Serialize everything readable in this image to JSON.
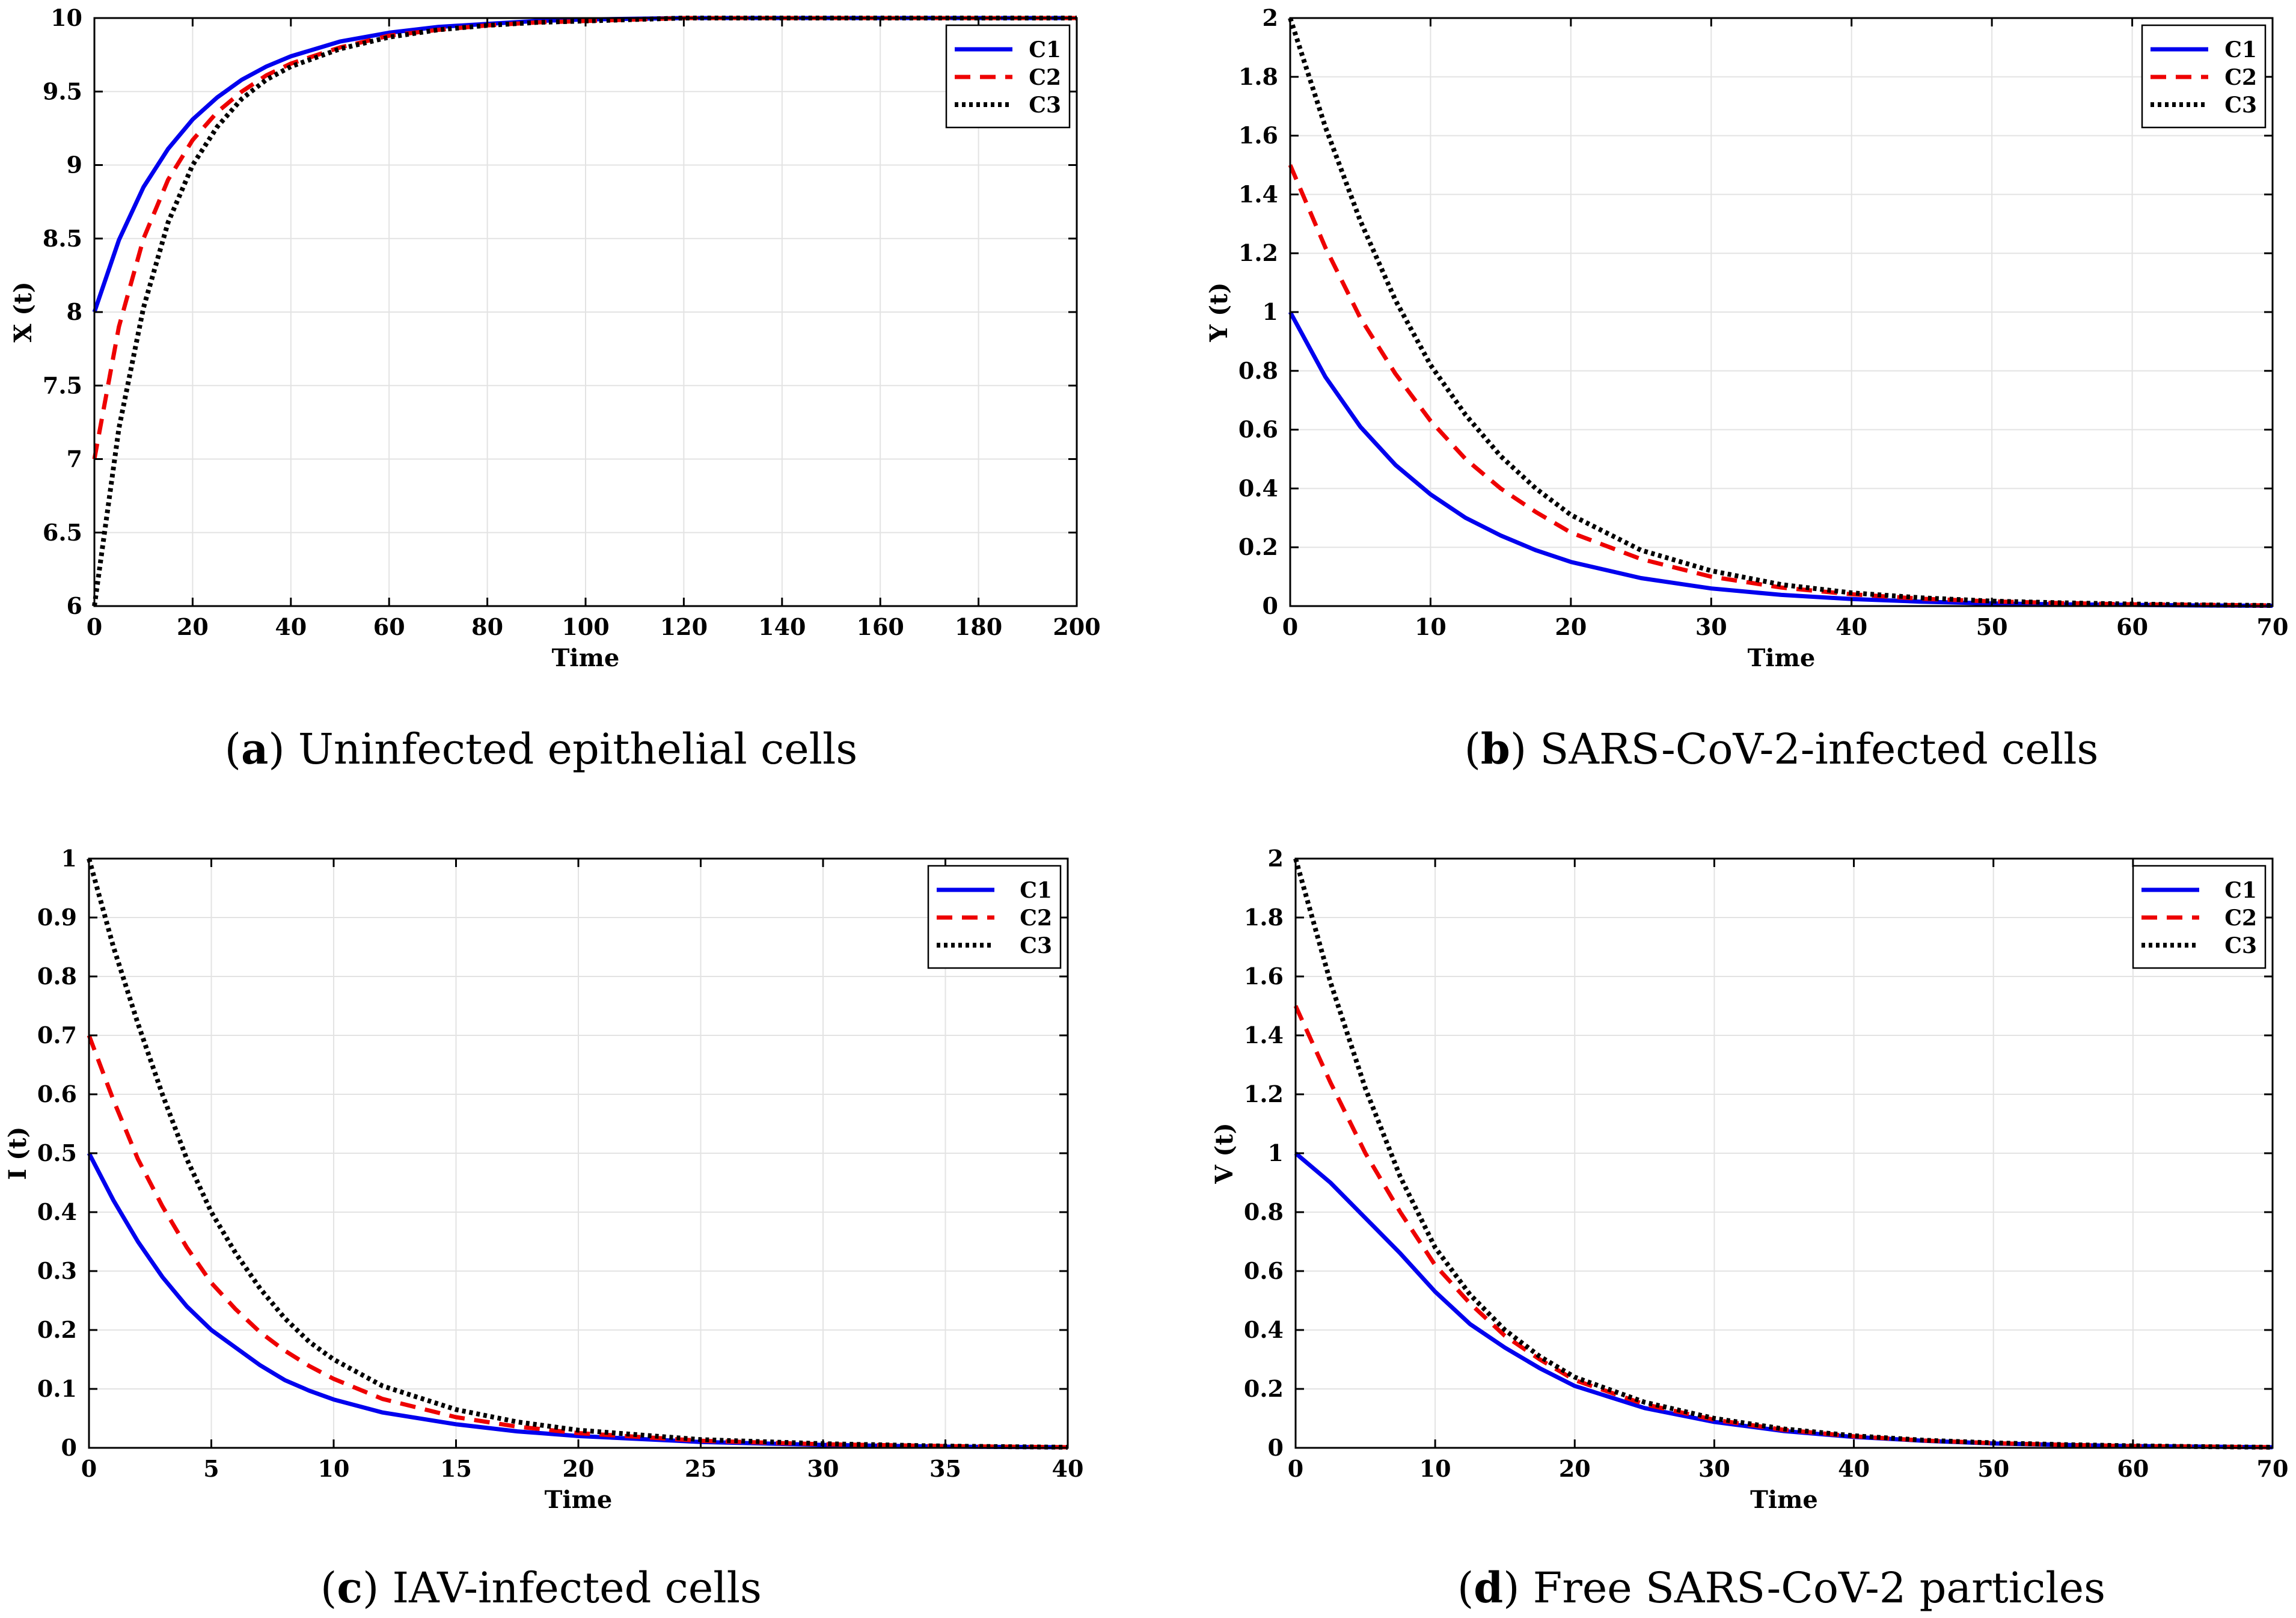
{
  "series_styles": {
    "C1": {
      "color": "#0000ee",
      "dash": "none",
      "width": 7
    },
    "C2": {
      "color": "#ee0000",
      "dash": "26,16",
      "width": 7
    },
    "C3": {
      "color": "#000000",
      "dash": "6,6",
      "width": 8
    }
  },
  "chart_data": [
    {
      "type": "line",
      "panel": "a",
      "caption_letter": "a",
      "caption_text": "Uninfected epithelial cells",
      "xlabel": "Time",
      "ylabel": "X (t)",
      "xlim": [
        0,
        200
      ],
      "ylim": [
        6,
        10
      ],
      "xticks": [
        0,
        20,
        40,
        60,
        80,
        100,
        120,
        140,
        160,
        180,
        200
      ],
      "yticks": [
        6,
        6.5,
        7,
        7.5,
        8,
        8.5,
        9,
        9.5,
        10
      ],
      "grid": true,
      "legend_position": "top-right",
      "x": [
        0,
        5,
        10,
        15,
        20,
        25,
        30,
        35,
        40,
        50,
        60,
        70,
        80,
        90,
        100,
        120,
        140,
        160,
        180,
        200
      ],
      "series": [
        {
          "name": "C1",
          "values": [
            8.0,
            8.49,
            8.85,
            9.11,
            9.31,
            9.46,
            9.58,
            9.67,
            9.74,
            9.84,
            9.9,
            9.94,
            9.96,
            9.98,
            9.99,
            10.0,
            10.0,
            10.0,
            10.0,
            10.0
          ]
        },
        {
          "name": "C2",
          "values": [
            7.0,
            7.9,
            8.5,
            8.9,
            9.17,
            9.36,
            9.5,
            9.61,
            9.69,
            9.8,
            9.88,
            9.92,
            9.95,
            9.97,
            9.98,
            10.0,
            10.0,
            10.0,
            10.0,
            10.0
          ]
        },
        {
          "name": "C3",
          "values": [
            6.0,
            7.21,
            8.03,
            8.61,
            9.0,
            9.26,
            9.45,
            9.58,
            9.67,
            9.79,
            9.87,
            9.92,
            9.95,
            9.97,
            9.98,
            10.0,
            10.0,
            10.0,
            10.0,
            10.0
          ]
        }
      ]
    },
    {
      "type": "line",
      "panel": "b",
      "caption_letter": "b",
      "caption_text": "SARS-CoV-2-infected cells",
      "xlabel": "Time",
      "ylabel": "Y (t)",
      "xlim": [
        0,
        70
      ],
      "ylim": [
        0,
        2
      ],
      "xticks": [
        0,
        10,
        20,
        30,
        40,
        50,
        60,
        70
      ],
      "yticks": [
        0,
        0.2,
        0.4,
        0.6,
        0.8,
        1,
        1.2,
        1.4,
        1.6,
        1.8,
        2
      ],
      "grid": true,
      "legend_position": "top-right",
      "x": [
        0,
        2.5,
        5,
        7.5,
        10,
        12.5,
        15,
        17.5,
        20,
        25,
        30,
        35,
        40,
        45,
        50,
        55,
        60,
        65,
        70
      ],
      "series": [
        {
          "name": "C1",
          "values": [
            1.0,
            0.78,
            0.61,
            0.48,
            0.38,
            0.3,
            0.24,
            0.19,
            0.15,
            0.095,
            0.06,
            0.038,
            0.024,
            0.015,
            0.009,
            0.006,
            0.004,
            0.002,
            0.001
          ]
        },
        {
          "name": "C2",
          "values": [
            1.5,
            1.22,
            0.98,
            0.79,
            0.63,
            0.5,
            0.4,
            0.32,
            0.25,
            0.16,
            0.1,
            0.063,
            0.04,
            0.025,
            0.016,
            0.01,
            0.006,
            0.004,
            0.002
          ]
        },
        {
          "name": "C3",
          "values": [
            2.0,
            1.63,
            1.31,
            1.04,
            0.82,
            0.65,
            0.51,
            0.4,
            0.31,
            0.19,
            0.12,
            0.073,
            0.045,
            0.028,
            0.017,
            0.011,
            0.007,
            0.004,
            0.002
          ]
        }
      ]
    },
    {
      "type": "line",
      "panel": "c",
      "caption_letter": "c",
      "caption_text": "IAV-infected cells",
      "xlabel": "Time",
      "ylabel": "I (t)",
      "xlim": [
        0,
        40
      ],
      "ylim": [
        0,
        1
      ],
      "xticks": [
        0,
        5,
        10,
        15,
        20,
        25,
        30,
        35,
        40
      ],
      "yticks": [
        0,
        0.1,
        0.2,
        0.3,
        0.4,
        0.5,
        0.6,
        0.7,
        0.8,
        0.9,
        1
      ],
      "grid": true,
      "legend_position": "top-right",
      "x": [
        0,
        1,
        2,
        3,
        4,
        5,
        6,
        7,
        8,
        9,
        10,
        12,
        15,
        17.5,
        20,
        25,
        30,
        35,
        40
      ],
      "series": [
        {
          "name": "C1",
          "values": [
            0.5,
            0.42,
            0.35,
            0.29,
            0.24,
            0.2,
            0.17,
            0.14,
            0.115,
            0.097,
            0.082,
            0.06,
            0.04,
            0.028,
            0.02,
            0.01,
            0.005,
            0.002,
            0.001
          ]
        },
        {
          "name": "C2",
          "values": [
            0.7,
            0.59,
            0.49,
            0.41,
            0.34,
            0.28,
            0.235,
            0.196,
            0.165,
            0.139,
            0.117,
            0.083,
            0.052,
            0.036,
            0.025,
            0.012,
            0.006,
            0.003,
            0.001
          ]
        },
        {
          "name": "C3",
          "values": [
            1.0,
            0.85,
            0.72,
            0.6,
            0.49,
            0.4,
            0.33,
            0.27,
            0.22,
            0.18,
            0.15,
            0.105,
            0.065,
            0.044,
            0.03,
            0.014,
            0.007,
            0.003,
            0.001
          ]
        }
      ]
    },
    {
      "type": "line",
      "panel": "d",
      "caption_letter": "d",
      "caption_text": "Free SARS-CoV-2 particles",
      "xlabel": "Time",
      "ylabel": "V (t)",
      "xlim": [
        0,
        70
      ],
      "ylim": [
        0,
        2
      ],
      "xticks": [
        0,
        10,
        20,
        30,
        40,
        50,
        60,
        70
      ],
      "yticks": [
        0,
        0.2,
        0.4,
        0.6,
        0.8,
        1,
        1.2,
        1.4,
        1.6,
        1.8,
        2
      ],
      "grid": true,
      "legend_position": "top-right",
      "x": [
        0,
        2.5,
        5,
        7.5,
        10,
        12.5,
        15,
        17.5,
        20,
        25,
        30,
        35,
        40,
        45,
        50,
        55,
        60,
        65,
        70
      ],
      "series": [
        {
          "name": "C1",
          "values": [
            1.0,
            0.9,
            0.78,
            0.66,
            0.53,
            0.42,
            0.34,
            0.27,
            0.21,
            0.135,
            0.088,
            0.057,
            0.037,
            0.024,
            0.015,
            0.01,
            0.006,
            0.004,
            0.002
          ]
        },
        {
          "name": "C2",
          "values": [
            1.5,
            1.24,
            1.0,
            0.8,
            0.62,
            0.49,
            0.38,
            0.3,
            0.23,
            0.148,
            0.095,
            0.061,
            0.039,
            0.025,
            0.016,
            0.01,
            0.006,
            0.004,
            0.002
          ]
        },
        {
          "name": "C3",
          "values": [
            2.0,
            1.58,
            1.22,
            0.92,
            0.68,
            0.52,
            0.4,
            0.31,
            0.24,
            0.155,
            0.1,
            0.064,
            0.041,
            0.026,
            0.017,
            0.011,
            0.007,
            0.004,
            0.002
          ]
        }
      ]
    }
  ]
}
